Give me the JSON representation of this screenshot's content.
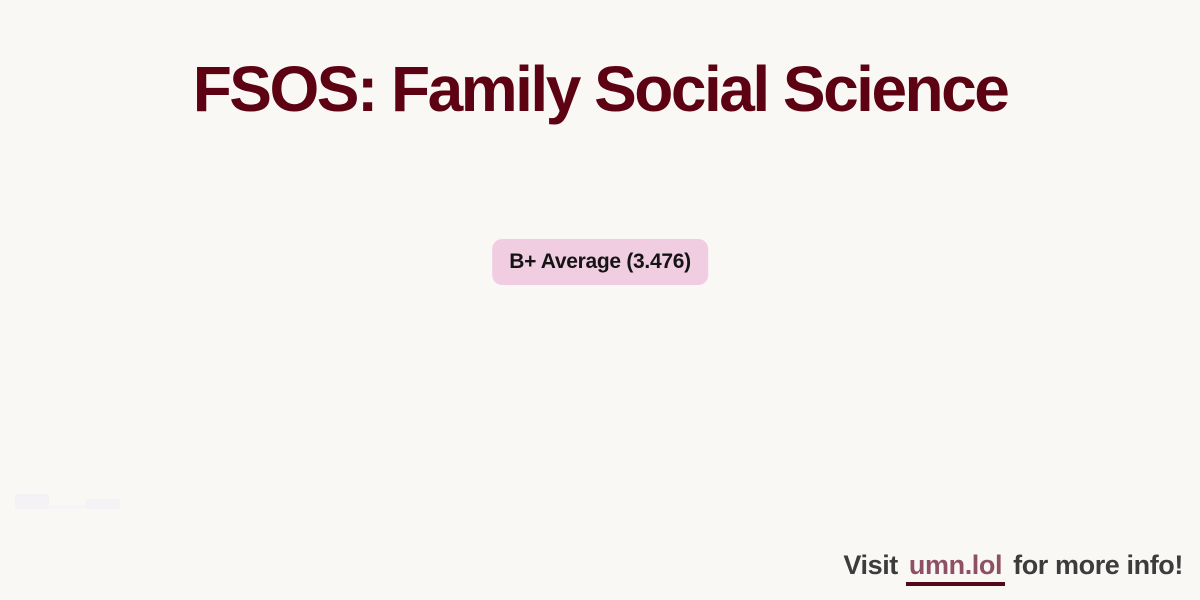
{
  "page": {
    "title": "FSOS: Family Social Science",
    "background_color": "#faf8f5",
    "title_color": "#5c0212"
  },
  "badge": {
    "label": "B+ Average (3.476)",
    "grade": "B+",
    "gpa_value": "3.476",
    "background_color": "#f0cde1",
    "text_color": "#141414"
  },
  "footer": {
    "prefix": "Visit",
    "link_text": "umn.lol",
    "suffix": "for more info!",
    "text_color": "#3d3b3c",
    "link_color": "#8d5064",
    "link_underline_color": "#500a1b"
  }
}
